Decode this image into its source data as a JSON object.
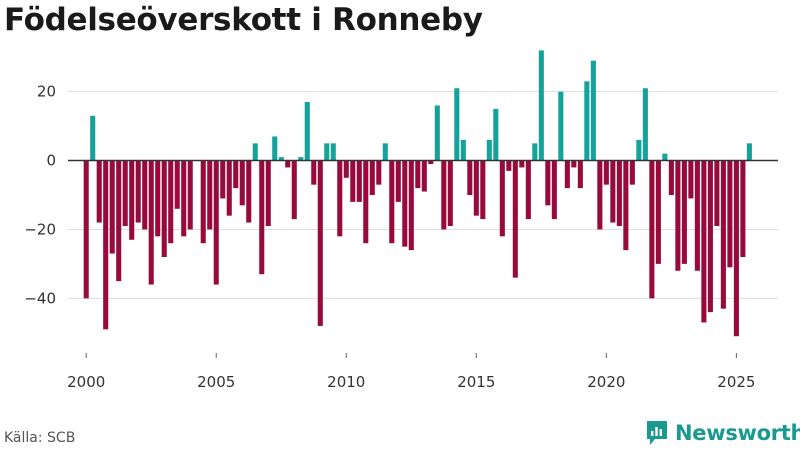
{
  "header": {
    "title": "Födelseöverskott i Ronneby"
  },
  "footer": {
    "source": "Källa: SCB",
    "brand": "Newsworthy"
  },
  "colors": {
    "positive": "#14a29a",
    "negative": "#990a3c",
    "baseline": "#333333",
    "grid": "#dddddd",
    "brand": "#1a9a8f"
  },
  "chart_data": {
    "type": "bar",
    "title": "Födelseöverskott i Ronneby",
    "xlabel": "",
    "ylabel": "",
    "ylim": [
      -55,
      35
    ],
    "xlim": [
      1999.3,
      2026.6
    ],
    "y_ticks": [
      -40,
      -20,
      0,
      20
    ],
    "x_ticks": [
      2000,
      2005,
      2010,
      2015,
      2020,
      2025
    ],
    "grid": true,
    "x": [
      2000.0,
      2000.25,
      2000.5,
      2000.75,
      2001.0,
      2001.25,
      2001.5,
      2001.75,
      2002.0,
      2002.25,
      2002.5,
      2002.75,
      2003.0,
      2003.25,
      2003.5,
      2003.75,
      2004.0,
      2004.25,
      2004.5,
      2004.75,
      2005.0,
      2005.25,
      2005.5,
      2005.75,
      2006.0,
      2006.25,
      2006.5,
      2006.75,
      2007.0,
      2007.25,
      2007.5,
      2007.75,
      2008.0,
      2008.25,
      2008.5,
      2008.75,
      2009.0,
      2009.25,
      2009.5,
      2009.75,
      2010.0,
      2010.25,
      2010.5,
      2010.75,
      2011.0,
      2011.25,
      2011.5,
      2011.75,
      2012.0,
      2012.25,
      2012.5,
      2012.75,
      2013.0,
      2013.25,
      2013.5,
      2013.75,
      2014.0,
      2014.25,
      2014.5,
      2014.75,
      2015.0,
      2015.25,
      2015.5,
      2015.75,
      2016.0,
      2016.25,
      2016.5,
      2016.75,
      2017.0,
      2017.25,
      2017.5,
      2017.75,
      2018.0,
      2018.25,
      2018.5,
      2018.75,
      2019.0,
      2019.25,
      2019.5,
      2019.75,
      2020.0,
      2020.25,
      2020.5,
      2020.75,
      2021.0,
      2021.25,
      2021.5,
      2021.75,
      2022.0,
      2022.25,
      2022.5,
      2022.75,
      2023.0,
      2023.25,
      2023.5,
      2023.75,
      2024.0,
      2024.25,
      2024.5,
      2024.75,
      2025.0,
      2025.25,
      2025.5
    ],
    "values": [
      -40,
      13,
      -18,
      -49,
      -27,
      -35,
      -19,
      -23,
      -18,
      -20,
      -36,
      -22,
      -28,
      -24,
      -14,
      -22,
      -20,
      0,
      -24,
      -20,
      -36,
      -11,
      -16,
      -8,
      -13,
      -18,
      5,
      -33,
      -19,
      7,
      1,
      -2,
      -17,
      1,
      17,
      -7,
      -48,
      5,
      5,
      -22,
      -5,
      -12,
      -12,
      -24,
      -10,
      -7,
      5,
      -24,
      -12,
      -25,
      -26,
      -8,
      -9,
      -1,
      16,
      -20,
      -19,
      21,
      6,
      -10,
      -16,
      -17,
      6,
      15,
      -22,
      -3,
      -34,
      -2,
      -17,
      5,
      32,
      -13,
      -17,
      20,
      -8,
      -2,
      -8,
      23,
      29,
      -20,
      -7,
      -18,
      -19,
      -26,
      -7,
      6,
      21,
      -40,
      -30,
      2,
      -10,
      -32,
      -30,
      -11,
      -32,
      -47,
      -44,
      -19,
      -43,
      -31,
      -51,
      -28,
      5
    ]
  }
}
